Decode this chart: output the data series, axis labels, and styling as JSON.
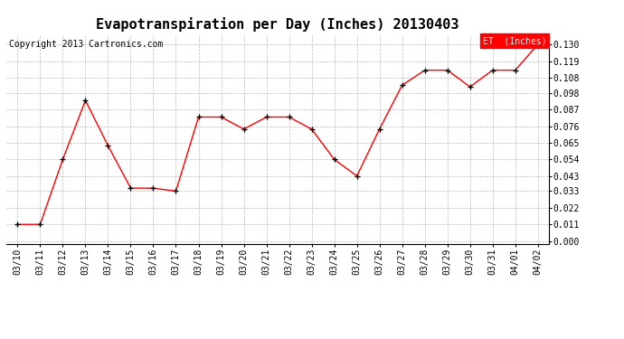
{
  "title": "Evapotranspiration per Day (Inches) 20130403",
  "copyright": "Copyright 2013 Cartronics.com",
  "legend_label": "ET  (Inches)",
  "dates": [
    "03/10",
    "03/11",
    "03/12",
    "03/13",
    "03/14",
    "03/15",
    "03/16",
    "03/17",
    "03/18",
    "03/19",
    "03/20",
    "03/21",
    "03/22",
    "03/23",
    "03/24",
    "03/25",
    "03/26",
    "03/27",
    "03/28",
    "03/29",
    "03/30",
    "03/31",
    "04/01",
    "04/02"
  ],
  "values": [
    0.011,
    0.011,
    0.054,
    0.093,
    0.063,
    0.035,
    0.035,
    0.033,
    0.082,
    0.082,
    0.074,
    0.082,
    0.082,
    0.074,
    0.054,
    0.043,
    0.074,
    0.103,
    0.113,
    0.113,
    0.102,
    0.113,
    0.113,
    0.13
  ],
  "y_ticks": [
    0.0,
    0.011,
    0.022,
    0.033,
    0.043,
    0.054,
    0.065,
    0.076,
    0.087,
    0.098,
    0.108,
    0.119,
    0.13
  ],
  "line_color": "red",
  "marker_color": "black",
  "background_color": "#ffffff",
  "grid_color": "#aaaaaa",
  "title_fontsize": 11,
  "copyright_fontsize": 7,
  "tick_fontsize": 7,
  "legend_bg_color": "red",
  "legend_text_color": "white"
}
